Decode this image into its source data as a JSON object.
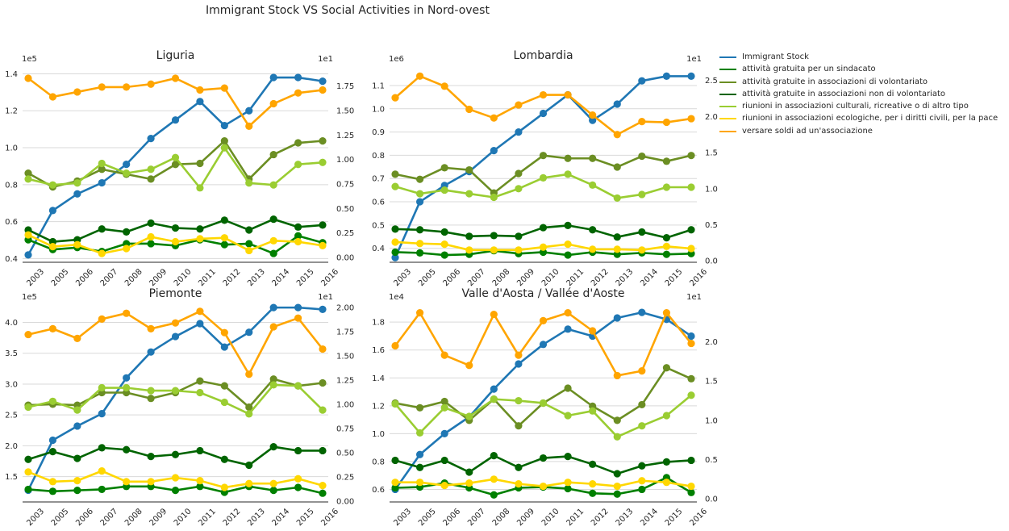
{
  "figure": {
    "suptitle": "Immigrant Stock VS Social Activities in Nord-ovest"
  },
  "legend": [
    {
      "label": "Immigrant Stock",
      "color": "#1f77b4"
    },
    {
      "label": "attività gratuita per un sindacato",
      "color": "#008000"
    },
    {
      "label": "attività gratuite in associazioni di volontariato",
      "color": "#6b8e23"
    },
    {
      "label": "attività gratuite in associazioni non di volontariato",
      "color": "#006400"
    },
    {
      "label": "riunioni in associazioni culturali, ricreative o di altro tipo",
      "color": "#9acd32"
    },
    {
      "label": "riunioni in associazioni ecologiche, per i diritti civili, per la pace",
      "color": "#ffd700"
    },
    {
      "label": "versare soldi ad un'associazione",
      "color": "#ffa500"
    }
  ],
  "chart_data": [
    {
      "type": "line",
      "title": "Liguria",
      "categories": [
        "2003",
        "2005",
        "2006",
        "2007",
        "2008",
        "2009",
        "2010",
        "2011",
        "2012",
        "2013",
        "2014",
        "2015",
        "2016"
      ],
      "left_axis": {
        "offset_label": "1e5",
        "ylim": [
          0.38,
          1.45
        ],
        "ticks": [
          0.4,
          0.6,
          0.8,
          1.0,
          1.2,
          1.4
        ],
        "tick_labels": [
          "0.4",
          "0.6",
          "0.8",
          "1.0",
          "1.2",
          "1.4"
        ]
      },
      "right_axis": {
        "offset_label": "1e1",
        "ylim": [
          -0.05,
          1.97
        ],
        "ticks": [
          0,
          0.25,
          0.5,
          0.75,
          1.0,
          1.25,
          1.5,
          1.75
        ],
        "tick_labels": [
          "0.00",
          "0.25",
          "0.50",
          "0.75",
          "1.00",
          "1.25",
          "1.50",
          "1.75"
        ]
      },
      "series": [
        {
          "name": "Immigrant Stock",
          "axis": "left",
          "color": "#1f77b4",
          "values": [
            0.42,
            0.66,
            0.75,
            0.81,
            0.91,
            1.05,
            1.15,
            1.25,
            1.12,
            1.2,
            1.38,
            1.38,
            1.36
          ]
        },
        {
          "name": "attività gratuita per un sindacato",
          "axis": "right",
          "color": "#008000",
          "values": [
            0.18,
            0.08,
            0.1,
            0.06,
            0.14,
            0.14,
            0.12,
            0.18,
            0.13,
            0.14,
            0.04,
            0.22,
            0.15
          ]
        },
        {
          "name": "attività gratuite in associazioni di volontariato",
          "axis": "right",
          "color": "#6b8e23",
          "values": [
            0.86,
            0.72,
            0.78,
            0.9,
            0.85,
            0.8,
            0.95,
            0.96,
            1.19,
            0.8,
            1.05,
            1.17,
            1.19
          ]
        },
        {
          "name": "attività gratuite in associazioni non di volontariato",
          "axis": "right",
          "color": "#006400",
          "values": [
            0.28,
            0.16,
            0.18,
            0.29,
            0.26,
            0.35,
            0.3,
            0.29,
            0.38,
            0.28,
            0.39,
            0.31,
            0.33
          ]
        },
        {
          "name": "riunioni in associazioni culturali, ricreative o di altro tipo",
          "axis": "right",
          "color": "#9acd32",
          "values": [
            0.8,
            0.74,
            0.76,
            0.96,
            0.86,
            0.9,
            1.02,
            0.71,
            1.12,
            0.76,
            0.74,
            0.95,
            0.97
          ]
        },
        {
          "name": "riunioni in associazioni ecologiche, per i diritti civili, per la pace",
          "axis": "right",
          "color": "#ffd700",
          "values": [
            0.23,
            0.11,
            0.13,
            0.04,
            0.09,
            0.21,
            0.16,
            0.19,
            0.2,
            0.07,
            0.17,
            0.16,
            0.12
          ]
        },
        {
          "name": "versare soldi ad un'associazione",
          "axis": "right",
          "color": "#ffa500",
          "values": [
            1.83,
            1.64,
            1.69,
            1.74,
            1.74,
            1.77,
            1.83,
            1.71,
            1.73,
            1.34,
            1.57,
            1.68,
            1.71
          ]
        }
      ]
    },
    {
      "type": "line",
      "title": "Lombardia",
      "categories": [
        "2003",
        "2005",
        "2006",
        "2007",
        "2008",
        "2009",
        "2010",
        "2011",
        "2012",
        "2013",
        "2014",
        "2015",
        "2016"
      ],
      "left_axis": {
        "offset_label": "1e6",
        "ylim": [
          0.34,
          1.19
        ],
        "ticks": [
          0.4,
          0.5,
          0.6,
          0.7,
          0.8,
          0.9,
          1.0,
          1.1
        ],
        "tick_labels": [
          "0.4",
          "0.5",
          "0.6",
          "0.7",
          "0.8",
          "0.9",
          "1.0",
          "1.1"
        ]
      },
      "right_axis": {
        "offset_label": "1e1",
        "ylim": [
          -0.02,
          2.72
        ],
        "ticks": [
          0,
          0.5,
          1.0,
          1.5,
          2.0,
          2.5
        ],
        "tick_labels": [
          "0.0",
          "0.5",
          "1.0",
          "1.5",
          "2.0",
          "2.5"
        ]
      },
      "series": [
        {
          "name": "Immigrant Stock",
          "axis": "left",
          "color": "#1f77b4",
          "values": [
            0.36,
            0.6,
            0.67,
            0.73,
            0.82,
            0.9,
            0.98,
            1.06,
            0.95,
            1.02,
            1.12,
            1.14,
            1.14
          ]
        },
        {
          "name": "attività gratuita per un sindacato",
          "axis": "right",
          "color": "#008000",
          "values": [
            0.12,
            0.11,
            0.08,
            0.09,
            0.14,
            0.1,
            0.12,
            0.08,
            0.12,
            0.09,
            0.11,
            0.09,
            0.1
          ]
        },
        {
          "name": "attività gratuite in associazioni di volontariato",
          "axis": "right",
          "color": "#6b8e23",
          "values": [
            1.2,
            1.13,
            1.29,
            1.26,
            0.94,
            1.21,
            1.46,
            1.42,
            1.42,
            1.3,
            1.45,
            1.38,
            1.46
          ]
        },
        {
          "name": "attività gratuite in associazioni non di volontariato",
          "axis": "right",
          "color": "#006400",
          "values": [
            0.44,
            0.43,
            0.4,
            0.34,
            0.35,
            0.34,
            0.46,
            0.49,
            0.43,
            0.33,
            0.4,
            0.32,
            0.43
          ]
        },
        {
          "name": "riunioni in associazioni culturali, ricreative o di altro tipo",
          "axis": "right",
          "color": "#9acd32",
          "values": [
            1.03,
            0.93,
            0.98,
            0.93,
            0.88,
            1.0,
            1.15,
            1.2,
            1.05,
            0.87,
            0.92,
            1.02,
            1.02
          ]
        },
        {
          "name": "riunioni in associazioni ecologiche, per i diritti civili, per la pace",
          "axis": "right",
          "color": "#ffd700",
          "values": [
            0.26,
            0.24,
            0.23,
            0.15,
            0.15,
            0.15,
            0.19,
            0.23,
            0.16,
            0.16,
            0.15,
            0.2,
            0.17
          ]
        },
        {
          "name": "versare soldi ad un'associazione",
          "axis": "right",
          "color": "#ffa500",
          "values": [
            2.26,
            2.56,
            2.42,
            2.1,
            1.98,
            2.16,
            2.3,
            2.3,
            2.02,
            1.75,
            1.93,
            1.92,
            1.97
          ]
        }
      ]
    },
    {
      "type": "line",
      "title": "Piemonte",
      "categories": [
        "2003",
        "2005",
        "2006",
        "2007",
        "2008",
        "2009",
        "2010",
        "2011",
        "2012",
        "2013",
        "2014",
        "2015",
        "2016"
      ],
      "left_axis": {
        "offset_label": "1e5",
        "ylim": [
          1.09,
          4.32
        ],
        "ticks": [
          1.5,
          2.0,
          2.5,
          3.0,
          3.5,
          4.0
        ],
        "tick_labels": [
          "1.5",
          "2.0",
          "2.5",
          "3.0",
          "3.5",
          "4.0"
        ]
      },
      "right_axis": {
        "offset_label": "1e1",
        "ylim": [
          -0.01,
          2.05
        ],
        "ticks": [
          0,
          0.25,
          0.5,
          0.75,
          1.0,
          1.25,
          1.5,
          1.75,
          2.0
        ],
        "tick_labels": [
          "0.00",
          "0.25",
          "0.50",
          "0.75",
          "1.00",
          "1.25",
          "1.50",
          "1.75",
          "2.00"
        ]
      },
      "series": [
        {
          "name": "Immigrant Stock",
          "axis": "left",
          "color": "#1f77b4",
          "values": [
            1.28,
            2.09,
            2.32,
            2.52,
            3.1,
            3.52,
            3.77,
            3.98,
            3.6,
            3.84,
            4.24,
            4.24,
            4.21
          ]
        },
        {
          "name": "attività gratuita per un sindacato",
          "axis": "right",
          "color": "#008000",
          "values": [
            0.12,
            0.1,
            0.11,
            0.12,
            0.15,
            0.15,
            0.11,
            0.15,
            0.09,
            0.15,
            0.11,
            0.14,
            0.08
          ]
        },
        {
          "name": "attività gratuite in associazioni di volontariato",
          "axis": "right",
          "color": "#6b8e23",
          "values": [
            0.99,
            1.0,
            0.99,
            1.12,
            1.12,
            1.06,
            1.12,
            1.24,
            1.19,
            0.97,
            1.26,
            1.19,
            1.22
          ]
        },
        {
          "name": "attività gratuite in associazioni non di volontariato",
          "axis": "right",
          "color": "#006400",
          "values": [
            0.43,
            0.51,
            0.44,
            0.55,
            0.53,
            0.46,
            0.48,
            0.52,
            0.43,
            0.37,
            0.56,
            0.52,
            0.52
          ]
        },
        {
          "name": "riunioni in associazioni culturali, ricreative o di altro tipo",
          "axis": "right",
          "color": "#9acd32",
          "values": [
            0.97,
            1.03,
            0.94,
            1.17,
            1.17,
            1.14,
            1.14,
            1.12,
            1.02,
            0.9,
            1.2,
            1.19,
            0.94
          ]
        },
        {
          "name": "riunioni in associazioni ecologiche, per i diritti civili, per la pace",
          "axis": "right",
          "color": "#ffd700",
          "values": [
            0.3,
            0.2,
            0.21,
            0.31,
            0.2,
            0.2,
            0.24,
            0.21,
            0.14,
            0.18,
            0.18,
            0.23,
            0.16
          ]
        },
        {
          "name": "versare soldi ad un'associazione",
          "axis": "right",
          "color": "#ffa500",
          "values": [
            1.72,
            1.78,
            1.68,
            1.88,
            1.94,
            1.78,
            1.84,
            1.96,
            1.74,
            1.31,
            1.8,
            1.89,
            1.57
          ]
        }
      ]
    },
    {
      "type": "line",
      "title": "Valle d'Aosta / Vallée d'Aoste",
      "categories": [
        "2003",
        "2005",
        "2006",
        "2007",
        "2008",
        "2009",
        "2010",
        "2011",
        "2012",
        "2013",
        "2014",
        "2015",
        "2016"
      ],
      "left_axis": {
        "offset_label": "1e4",
        "ylim": [
          0.51,
          1.94
        ],
        "ticks": [
          0.6,
          0.8,
          1.0,
          1.2,
          1.4,
          1.6,
          1.8
        ],
        "tick_labels": [
          "0.6",
          "0.8",
          "1.0",
          "1.2",
          "1.4",
          "1.6",
          "1.8"
        ]
      },
      "right_axis": {
        "offset_label": "1e1",
        "ylim": [
          -0.04,
          2.5
        ],
        "ticks": [
          0,
          0.5,
          1.0,
          1.5,
          2.0
        ],
        "tick_labels": [
          "0.0",
          "0.5",
          "1.0",
          "1.5",
          "2.0"
        ]
      },
      "series": [
        {
          "name": "Immigrant Stock",
          "axis": "left",
          "color": "#1f77b4",
          "values": [
            0.6,
            0.85,
            1.0,
            1.12,
            1.32,
            1.5,
            1.64,
            1.75,
            1.7,
            1.83,
            1.87,
            1.82,
            1.7
          ]
        },
        {
          "name": "attività gratuita per un sindacato",
          "axis": "right",
          "color": "#008000",
          "values": [
            0.14,
            0.15,
            0.2,
            0.14,
            0.05,
            0.14,
            0.15,
            0.13,
            0.07,
            0.06,
            0.12,
            0.27,
            0.08
          ]
        },
        {
          "name": "attività gratuite in associazioni di volontariato",
          "axis": "right",
          "color": "#6b8e23",
          "values": [
            1.22,
            1.16,
            1.24,
            1.0,
            1.27,
            0.93,
            1.22,
            1.41,
            1.18,
            1.0,
            1.2,
            1.67,
            1.53
          ]
        },
        {
          "name": "attività gratuite in associazioni non di volontariato",
          "axis": "right",
          "color": "#006400",
          "values": [
            0.49,
            0.4,
            0.49,
            0.34,
            0.55,
            0.4,
            0.52,
            0.54,
            0.44,
            0.32,
            0.42,
            0.47,
            0.49
          ]
        },
        {
          "name": "riunioni in associazioni culturali, ricreative o di altro tipo",
          "axis": "right",
          "color": "#9acd32",
          "values": [
            1.21,
            0.84,
            1.16,
            1.05,
            1.27,
            1.25,
            1.22,
            1.06,
            1.12,
            0.79,
            0.93,
            1.06,
            1.32
          ]
        },
        {
          "name": "riunioni in associazioni ecologiche, per i diritti civili, per la pace",
          "axis": "right",
          "color": "#ffd700",
          "values": [
            0.21,
            0.21,
            0.17,
            0.2,
            0.25,
            0.19,
            0.16,
            0.21,
            0.19,
            0.16,
            0.23,
            0.21,
            0.16
          ]
        },
        {
          "name": "versare soldi ad un'associazione",
          "axis": "right",
          "color": "#ffa500",
          "values": [
            1.95,
            2.37,
            1.83,
            1.7,
            2.35,
            1.83,
            2.27,
            2.37,
            2.14,
            1.57,
            1.63,
            2.37,
            1.98
          ]
        }
      ]
    }
  ]
}
